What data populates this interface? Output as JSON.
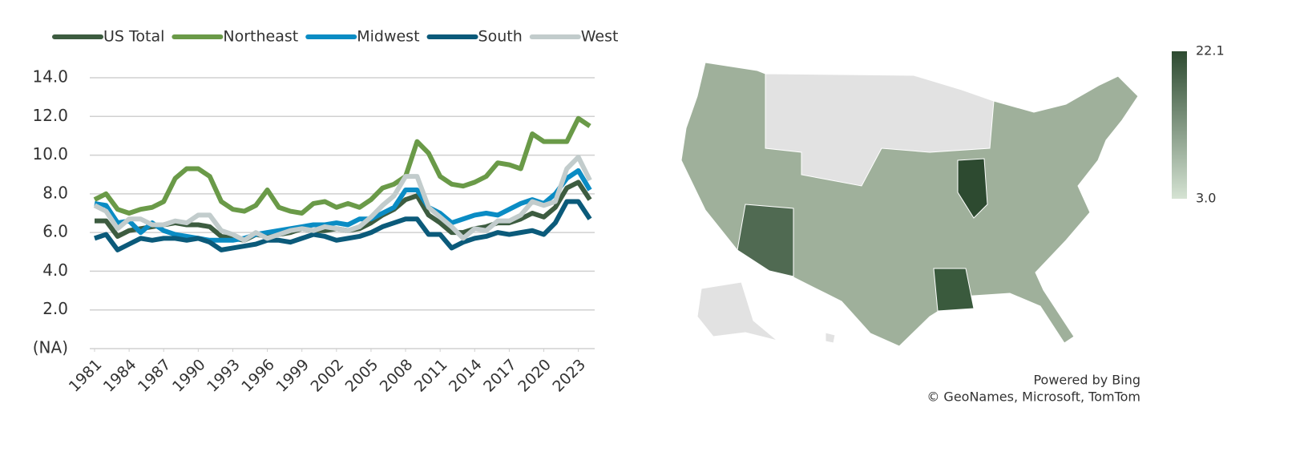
{
  "chart_data": [
    {
      "type": "line",
      "x": [
        1981,
        1982,
        1983,
        1984,
        1985,
        1986,
        1987,
        1988,
        1989,
        1990,
        1991,
        1992,
        1993,
        1994,
        1995,
        1996,
        1997,
        1998,
        1999,
        2000,
        2001,
        2002,
        2003,
        2004,
        2005,
        2006,
        2007,
        2008,
        2009,
        2010,
        2011,
        2012,
        2013,
        2014,
        2015,
        2016,
        2017,
        2018,
        2019,
        2020,
        2021,
        2022,
        2023,
        2024
      ],
      "xlim": [
        1981,
        2024
      ],
      "xticks": [
        1981,
        1984,
        1987,
        1990,
        1993,
        1996,
        1999,
        2002,
        2005,
        2008,
        2011,
        2014,
        2017,
        2020,
        2023
      ],
      "ylim": [
        0,
        14
      ],
      "yticks": [
        {
          "value": 0,
          "label": "(NA)"
        },
        {
          "value": 2,
          "label": "2.0"
        },
        {
          "value": 4,
          "label": "4.0"
        },
        {
          "value": 6,
          "label": "6.0"
        },
        {
          "value": 8,
          "label": "8.0"
        },
        {
          "value": 10,
          "label": "10.0"
        },
        {
          "value": 12,
          "label": "12.0"
        },
        {
          "value": 14,
          "label": "14.0"
        }
      ],
      "grid": true,
      "legend": "top",
      "series": [
        {
          "name": "US Total",
          "color": "#3d5c40",
          "values": [
            6.6,
            6.6,
            5.8,
            6.1,
            6.2,
            6.3,
            6.4,
            6.5,
            6.4,
            6.4,
            6.3,
            5.8,
            5.7,
            5.6,
            5.9,
            5.8,
            5.9,
            6.0,
            6.2,
            6.1,
            6.1,
            6.2,
            6.1,
            6.2,
            6.5,
            6.9,
            7.2,
            7.7,
            7.9,
            6.9,
            6.5,
            6.0,
            6.0,
            6.2,
            6.3,
            6.5,
            6.5,
            6.7,
            7.0,
            6.8,
            7.3,
            8.3,
            8.6,
            7.7
          ]
        },
        {
          "name": "Northeast",
          "color": "#6a9a48",
          "values": [
            7.7,
            8.0,
            7.2,
            7.0,
            7.2,
            7.3,
            7.6,
            8.8,
            9.3,
            9.3,
            8.9,
            7.6,
            7.2,
            7.1,
            7.4,
            8.2,
            7.3,
            7.1,
            7.0,
            7.5,
            7.6,
            7.3,
            7.5,
            7.3,
            7.7,
            8.3,
            8.5,
            8.9,
            10.7,
            10.1,
            8.9,
            8.5,
            8.4,
            8.6,
            8.9,
            9.6,
            9.5,
            9.3,
            11.1,
            10.7,
            10.7,
            10.7,
            11.9,
            11.5
          ]
        },
        {
          "name": "Midwest",
          "color": "#0a8cc4",
          "values": [
            7.5,
            7.4,
            6.5,
            6.6,
            6.0,
            6.5,
            6.1,
            5.9,
            5.8,
            5.7,
            5.6,
            5.6,
            5.6,
            5.7,
            5.9,
            6.0,
            6.1,
            6.2,
            6.3,
            6.4,
            6.4,
            6.5,
            6.4,
            6.7,
            6.7,
            7.0,
            7.3,
            8.2,
            8.2,
            7.3,
            7.0,
            6.5,
            6.7,
            6.9,
            7.0,
            6.9,
            7.2,
            7.5,
            7.7,
            7.5,
            8.0,
            8.8,
            9.2,
            8.2
          ]
        },
        {
          "name": "South",
          "color": "#0b5a7a",
          "values": [
            5.7,
            5.9,
            5.1,
            5.4,
            5.7,
            5.6,
            5.7,
            5.7,
            5.6,
            5.7,
            5.5,
            5.1,
            5.2,
            5.3,
            5.4,
            5.6,
            5.6,
            5.5,
            5.7,
            5.9,
            5.8,
            5.6,
            5.7,
            5.8,
            6.0,
            6.3,
            6.5,
            6.7,
            6.7,
            5.9,
            5.9,
            5.2,
            5.5,
            5.7,
            5.8,
            6.0,
            5.9,
            6.0,
            6.1,
            5.9,
            6.5,
            7.6,
            7.6,
            6.7
          ]
        },
        {
          "name": "West",
          "color": "#c2cccc",
          "values": [
            7.4,
            7.1,
            6.2,
            6.7,
            6.7,
            6.4,
            6.4,
            6.6,
            6.5,
            6.9,
            6.9,
            6.1,
            5.9,
            5.6,
            6.0,
            5.7,
            5.9,
            6.1,
            6.2,
            6.1,
            6.3,
            6.2,
            6.1,
            6.3,
            6.8,
            7.4,
            7.9,
            8.9,
            8.9,
            7.3,
            6.8,
            6.3,
            5.7,
            6.2,
            6.1,
            6.6,
            6.6,
            6.9,
            7.6,
            7.4,
            7.6,
            9.3,
            9.9,
            8.7
          ]
        }
      ]
    },
    {
      "type": "map",
      "clim": [
        3.0,
        22.1
      ],
      "cticks": [
        {
          "value": 3.0,
          "label": "3.0"
        },
        22.1
      ],
      "colors": [
        "#d5e3d3",
        "#2d4a30"
      ],
      "attribution": [
        "Powered by Bing",
        "© GeoNames, Microsoft, TomTom"
      ]
    }
  ]
}
